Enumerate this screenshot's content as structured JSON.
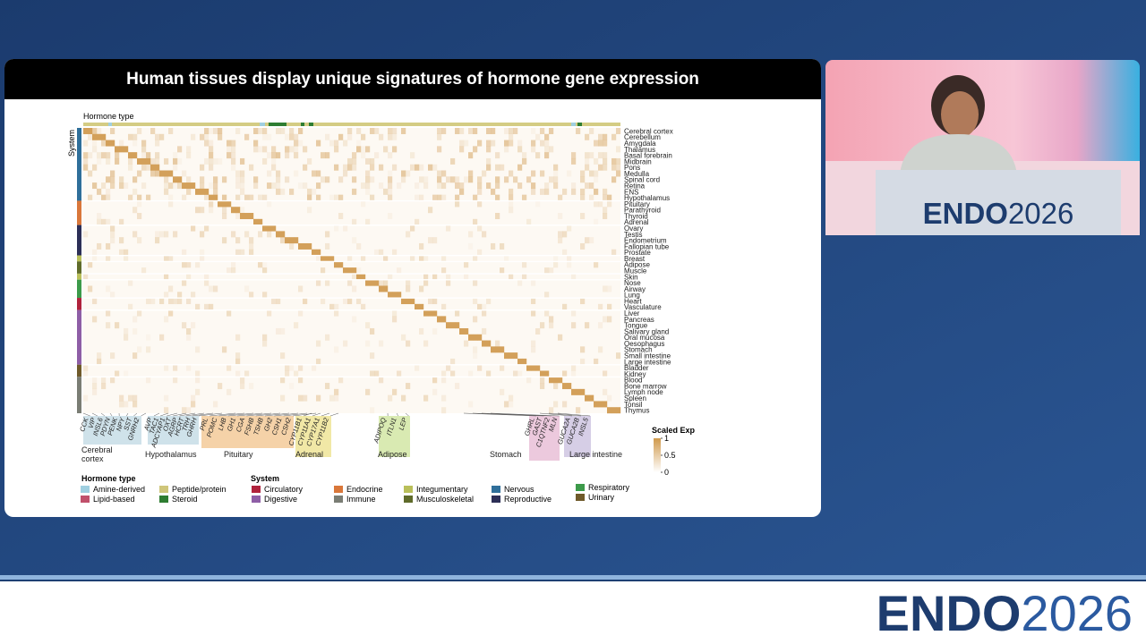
{
  "slide": {
    "title": "Human tissues display unique signatures of hormone gene expression"
  },
  "figure": {
    "hormone_type_label": "Hormone type",
    "system_label": "System",
    "tissues": [
      "Cerebral cortex",
      "Cerebellum",
      "Amygdala",
      "Thalamus",
      "Basal forebrain",
      "Midbrain",
      "Pons",
      "Medulla",
      "Spinal cord",
      "Retina",
      "ENS",
      "Hypothalamus",
      "Pituitary",
      "Parathyroid",
      "Thyroid",
      "Adrenal",
      "Ovary",
      "Testis",
      "Endometrium",
      "Fallopian tube",
      "Prostate",
      "Breast",
      "Adipose",
      "Muscle",
      "Skin",
      "Nose",
      "Airway",
      "Lung",
      "Heart",
      "Vasculature",
      "Liver",
      "Pancreas",
      "Tongue",
      "Salivary gland",
      "Oral mucosa",
      "Oesophagus",
      "Stomach",
      "Small intestine",
      "Large intestine",
      "Bladder",
      "Kidney",
      "Blood",
      "Bone marrow",
      "Lymph node",
      "Spleen",
      "Tonsil",
      "Thymus"
    ],
    "gene_groups": [
      {
        "name": "Cerebral cortex",
        "color": "#cfe2ea",
        "genes": [
          "CCK",
          "VIP",
          "INSL6",
          "PDYN",
          "PENK",
          "NPY",
          "SST",
          "GNRH2"
        ]
      },
      {
        "name": "Hypothalamus",
        "color": "#cfe2ea",
        "genes": [
          "AVP",
          "TAC1",
          "ADCYAP1",
          "OXT",
          "AGRP",
          "HCRT",
          "TRH",
          "GHRH"
        ]
      },
      {
        "name": "Pituitary",
        "color": "#f5d2a8",
        "genes": [
          "PRL",
          "POMC",
          "LHB",
          "GH1",
          "CGA",
          "FSHB",
          "TSHB",
          "GH2",
          "CSH1",
          "CSH2"
        ]
      },
      {
        "name": "Adrenal",
        "color": "#f1e8a6",
        "genes": [
          "CYP11B1",
          "CYP11A1",
          "CYP17A1",
          "CYP11B2"
        ]
      },
      {
        "name": "Adipose",
        "color": "#d9eab2",
        "genes": [
          "ADIPOQ",
          "ITLN1",
          "LEP"
        ]
      },
      {
        "name": "Stomach",
        "color": "#ecc9dd",
        "genes": [
          "GHRL",
          "GAST",
          "C1QTNF2",
          "MLN"
        ]
      },
      {
        "name": "Large intestine",
        "color": "#d6cee6",
        "genes": [
          "GUCA2A",
          "GUCA2B",
          "INSL5"
        ]
      }
    ],
    "scale": {
      "title": "Scaled Exp",
      "ticks": [
        1,
        0.5,
        0
      ]
    },
    "legend": {
      "hormone_title": "Hormone type",
      "hormone_types": [
        {
          "name": "Amine-derived",
          "color": "#9fcfe0"
        },
        {
          "name": "Peptide/protein",
          "color": "#cfc67a"
        },
        {
          "name": "Lipid-based",
          "color": "#c0506b"
        },
        {
          "name": "Steroid",
          "color": "#2e7d32"
        }
      ],
      "system_title": "System",
      "systems": [
        {
          "name": "Circulatory",
          "color": "#b0223c"
        },
        {
          "name": "Digestive",
          "color": "#8e5ea6"
        },
        {
          "name": "Endocrine",
          "color": "#d9773a"
        },
        {
          "name": "Immune",
          "color": "#7a7d74"
        },
        {
          "name": "Integumentary",
          "color": "#b9bf5a"
        },
        {
          "name": "Musculoskeletal",
          "color": "#5f6b2a"
        },
        {
          "name": "Nervous",
          "color": "#2f6f9a"
        },
        {
          "name": "Reproductive",
          "color": "#2c2f57"
        },
        {
          "name": "Respiratory",
          "color": "#3c9a4a"
        },
        {
          "name": "Urinary",
          "color": "#6f5a2a"
        }
      ]
    }
  },
  "logo": {
    "left": "ENDO",
    "right": "2026"
  }
}
